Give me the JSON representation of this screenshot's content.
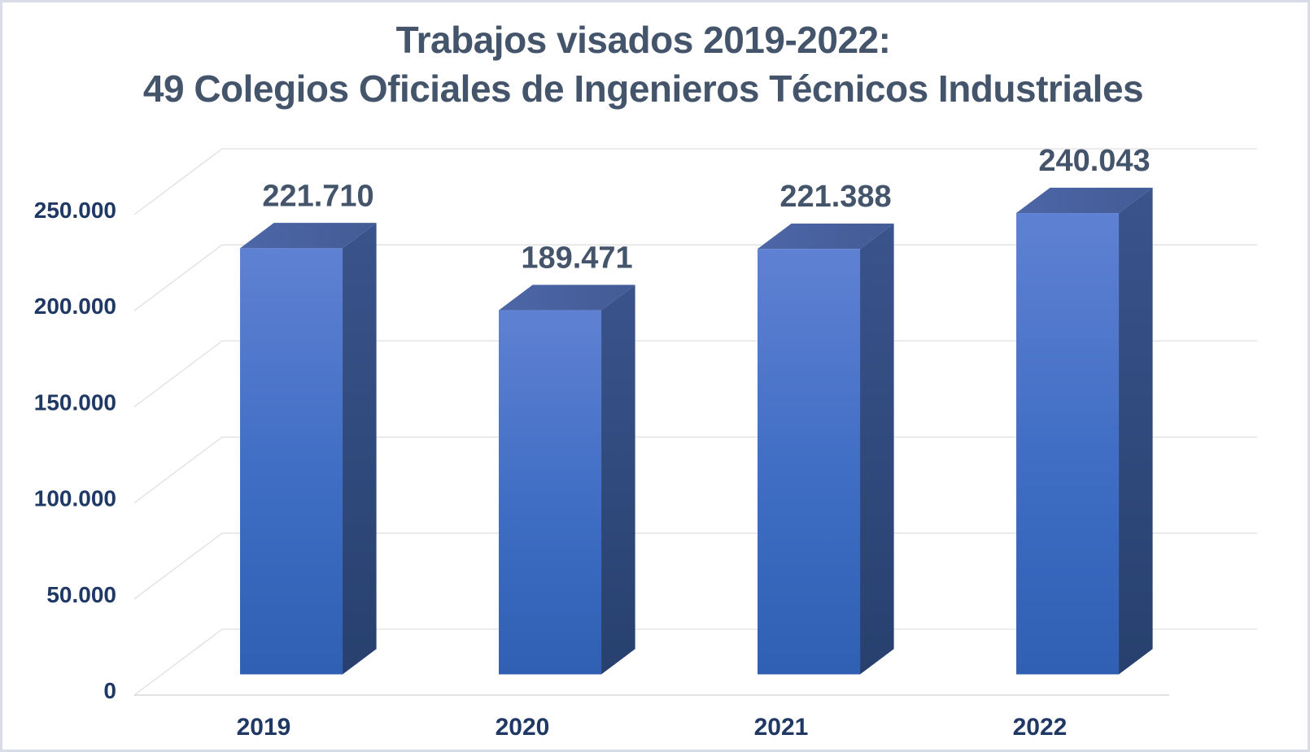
{
  "title": {
    "line1": "Trabajos visados 2019-2022:",
    "line2": "49 Colegios Oficiales de Ingenieros Técnicos Industriales"
  },
  "chart_data": {
    "type": "bar",
    "style": "3d-column",
    "title": "Trabajos visados 2019-2022: 49 Colegios Oficiales de Ingenieros Técnicos Industriales",
    "categories": [
      "2019",
      "2020",
      "2021",
      "2022"
    ],
    "values": [
      221710,
      189471,
      221388,
      240043
    ],
    "value_labels": [
      "221.710",
      "189.471",
      "221.388",
      "240.043"
    ],
    "y_tick_values": [
      0,
      50000,
      100000,
      150000,
      200000,
      250000
    ],
    "y_tick_labels": [
      "0",
      "50.000",
      "100.000",
      "150.000",
      "200.000",
      "250.000"
    ],
    "ylim": [
      0,
      250000
    ],
    "xlabel": "",
    "ylabel": "",
    "grid": true,
    "legend": "none",
    "colors": {
      "bar_front_top": "#5f81d3",
      "bar_front_mid": "#3e6dc3",
      "bar_front_bottom": "#2f60b3",
      "bar_top_light": "#4c66a7",
      "bar_top_dark": "#435c96",
      "bar_side_top": "#3a548c",
      "bar_side_bottom": "#27406e",
      "gridline": "#e0e0e0",
      "axis_line": "#d9d9d9",
      "axis_label": "#1f3864",
      "data_label": "#44546a",
      "title": "#44546a",
      "border": "#d8dce8",
      "background": "#ffffff"
    }
  }
}
